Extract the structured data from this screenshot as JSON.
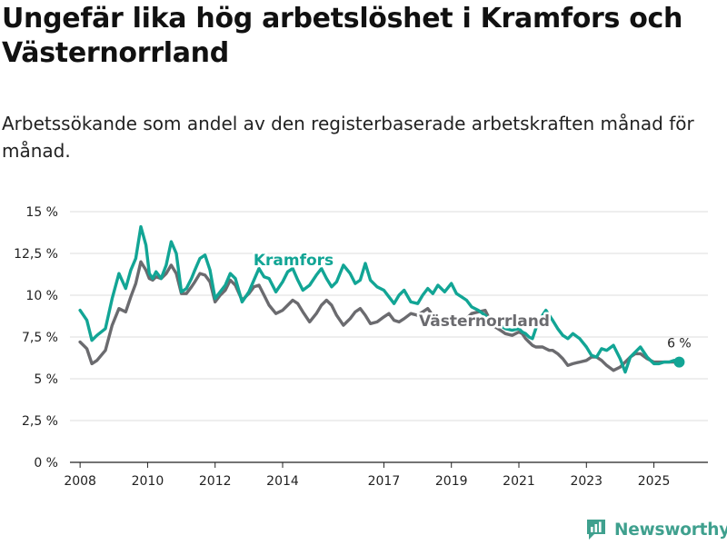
{
  "title": "Ungefär lika hög arbetslöshet i Kramfors och Västernorrland",
  "subtitle": "Arbetssökande som andel av den registerbaserade arbetskraften månad för månad.",
  "brand": "Newsworthy",
  "colors": {
    "kramfors": "#12a595",
    "vasternorrland": "#6b6b6f",
    "grid": "#dddddd",
    "brand": "#3fa08e"
  },
  "chart_data": {
    "type": "line",
    "title": "Ungefär lika hög arbetslöshet i Kramfors och Västernorrland",
    "xlabel": "",
    "ylabel": "",
    "xlim": [
      2007.7,
      2026.6
    ],
    "ylim": [
      0,
      15
    ],
    "y_ticks": [
      0,
      2.5,
      5,
      7.5,
      10,
      12.5,
      15
    ],
    "y_tick_labels": [
      "0 %",
      "2,5 %",
      "5 %",
      "7,5 %",
      "10 %",
      "12,5 %",
      "15 %"
    ],
    "x_ticks": [
      2008,
      2010,
      2012,
      2014,
      2017,
      2019,
      2021,
      2023,
      2025
    ],
    "x_tick_labels": [
      "2008",
      "2010",
      "2012",
      "2014",
      "2017",
      "2019",
      "2021",
      "2023",
      "2025"
    ],
    "grid": true,
    "end_label": "6 %",
    "series": [
      {
        "name": "Kramfors",
        "label": "Kramfors",
        "x": [
          2008.0,
          2008.2,
          2008.35,
          2008.5,
          2008.75,
          2008.95,
          2009.15,
          2009.35,
          2009.5,
          2009.65,
          2009.8,
          2009.95,
          2010.05,
          2010.15,
          2010.25,
          2010.4,
          2010.55,
          2010.7,
          2010.85,
          2011.0,
          2011.15,
          2011.3,
          2011.4,
          2011.55,
          2011.7,
          2011.85,
          2012.0,
          2012.15,
          2012.3,
          2012.45,
          2012.6,
          2012.8,
          2013.0,
          2013.15,
          2013.3,
          2013.45,
          2013.6,
          2013.8,
          2014.0,
          2014.15,
          2014.3,
          2014.45,
          2014.6,
          2014.8,
          2015.0,
          2015.15,
          2015.3,
          2015.45,
          2015.6,
          2015.8,
          2016.0,
          2016.15,
          2016.3,
          2016.45,
          2016.6,
          2016.8,
          2017.0,
          2017.15,
          2017.3,
          2017.45,
          2017.6,
          2017.8,
          2018.0,
          2018.15,
          2018.3,
          2018.45,
          2018.6,
          2018.8,
          2019.0,
          2019.15,
          2019.3,
          2019.45,
          2019.6,
          2019.8,
          2020.0,
          2020.15,
          2020.3,
          2020.45,
          2020.6,
          2020.8,
          2021.0,
          2021.1,
          2021.2,
          2021.3,
          2021.4,
          2021.5,
          2021.6,
          2021.7,
          2021.8,
          2021.9,
          2022.0,
          2022.15,
          2022.3,
          2022.45,
          2022.6,
          2022.8,
          2023.0,
          2023.15,
          2023.3,
          2023.45,
          2023.6,
          2023.8,
          2024.0,
          2024.15,
          2024.3,
          2024.45,
          2024.6,
          2024.8,
          2025.0,
          2025.15,
          2025.3,
          2025.45,
          2025.6,
          2025.75
        ],
        "values": [
          9.1,
          8.5,
          7.3,
          7.6,
          8.0,
          9.8,
          11.3,
          10.4,
          11.5,
          12.2,
          14.1,
          13.0,
          11.3,
          11.0,
          11.4,
          11.0,
          11.8,
          13.2,
          12.5,
          10.2,
          10.4,
          11.0,
          11.5,
          12.2,
          12.4,
          11.5,
          9.8,
          10.2,
          10.6,
          11.3,
          11.0,
          9.6,
          10.2,
          10.9,
          11.6,
          11.1,
          11.0,
          10.2,
          10.8,
          11.4,
          11.6,
          10.9,
          10.3,
          10.6,
          11.2,
          11.6,
          11.0,
          10.5,
          10.8,
          11.8,
          11.3,
          10.7,
          10.9,
          11.9,
          10.9,
          10.5,
          10.3,
          9.9,
          9.5,
          10.0,
          10.3,
          9.6,
          9.5,
          10.0,
          10.4,
          10.1,
          10.6,
          10.2,
          10.7,
          10.1,
          9.9,
          9.7,
          9.3,
          9.1,
          8.8,
          8.5,
          8.4,
          8.2,
          8.0,
          7.9,
          8.0,
          7.8,
          7.7,
          7.5,
          7.4,
          8.0,
          8.4,
          8.8,
          9.1,
          8.8,
          8.5,
          8.0,
          7.6,
          7.4,
          7.7,
          7.4,
          6.9,
          6.4,
          6.3,
          6.8,
          6.7,
          7.0,
          6.2,
          5.4,
          6.3,
          6.6,
          6.9,
          6.3,
          5.9,
          5.9,
          6.0,
          6.0,
          6.1,
          6.0
        ]
      },
      {
        "name": "Västernorrland",
        "label": "Västernorrland",
        "x": [
          2008.0,
          2008.2,
          2008.35,
          2008.5,
          2008.75,
          2008.95,
          2009.15,
          2009.35,
          2009.5,
          2009.65,
          2009.8,
          2009.95,
          2010.05,
          2010.15,
          2010.25,
          2010.4,
          2010.55,
          2010.7,
          2010.85,
          2011.0,
          2011.15,
          2011.3,
          2011.4,
          2011.55,
          2011.7,
          2011.85,
          2012.0,
          2012.15,
          2012.3,
          2012.45,
          2012.6,
          2012.8,
          2013.0,
          2013.15,
          2013.3,
          2013.45,
          2013.6,
          2013.8,
          2014.0,
          2014.15,
          2014.3,
          2014.45,
          2014.6,
          2014.8,
          2015.0,
          2015.15,
          2015.3,
          2015.45,
          2015.6,
          2015.8,
          2016.0,
          2016.15,
          2016.3,
          2016.45,
          2016.6,
          2016.8,
          2017.0,
          2017.15,
          2017.3,
          2017.45,
          2017.6,
          2017.8,
          2018.0,
          2018.15,
          2018.3,
          2018.45,
          2018.6,
          2018.8,
          2019.0,
          2019.15,
          2019.3,
          2019.45,
          2019.6,
          2019.8,
          2020.0,
          2020.15,
          2020.3,
          2020.45,
          2020.6,
          2020.8,
          2021.0,
          2021.1,
          2021.2,
          2021.3,
          2021.4,
          2021.5,
          2021.6,
          2021.7,
          2021.8,
          2021.9,
          2022.0,
          2022.15,
          2022.3,
          2022.45,
          2022.6,
          2022.8,
          2023.0,
          2023.15,
          2023.3,
          2023.45,
          2023.6,
          2023.8,
          2024.0,
          2024.15,
          2024.3,
          2024.45,
          2024.6,
          2024.8,
          2025.0,
          2025.15,
          2025.3,
          2025.45,
          2025.6,
          2025.75
        ],
        "values": [
          7.2,
          6.8,
          5.9,
          6.1,
          6.7,
          8.2,
          9.2,
          9.0,
          9.9,
          10.7,
          12.0,
          11.5,
          11.0,
          10.9,
          11.1,
          11.0,
          11.3,
          11.8,
          11.3,
          10.1,
          10.1,
          10.5,
          10.8,
          11.3,
          11.2,
          10.8,
          9.6,
          10.0,
          10.3,
          10.9,
          10.6,
          9.7,
          10.1,
          10.5,
          10.6,
          10.0,
          9.4,
          8.9,
          9.1,
          9.4,
          9.7,
          9.5,
          9.0,
          8.4,
          8.9,
          9.4,
          9.7,
          9.4,
          8.8,
          8.2,
          8.6,
          9.0,
          9.2,
          8.8,
          8.3,
          8.4,
          8.7,
          8.9,
          8.5,
          8.4,
          8.6,
          8.9,
          8.8,
          9.0,
          9.2,
          8.8,
          8.5,
          8.4,
          8.6,
          8.5,
          8.4,
          8.6,
          8.9,
          9.0,
          9.1,
          8.5,
          8.1,
          7.9,
          7.7,
          7.6,
          7.8,
          7.7,
          7.4,
          7.2,
          7.0,
          6.9,
          6.9,
          6.9,
          6.8,
          6.7,
          6.7,
          6.5,
          6.2,
          5.8,
          5.9,
          6.0,
          6.1,
          6.3,
          6.3,
          6.1,
          5.8,
          5.5,
          5.7,
          6.0,
          6.3,
          6.5,
          6.5,
          6.2,
          6.0,
          6.0,
          6.0,
          6.0,
          6.0,
          6.0
        ]
      }
    ]
  }
}
